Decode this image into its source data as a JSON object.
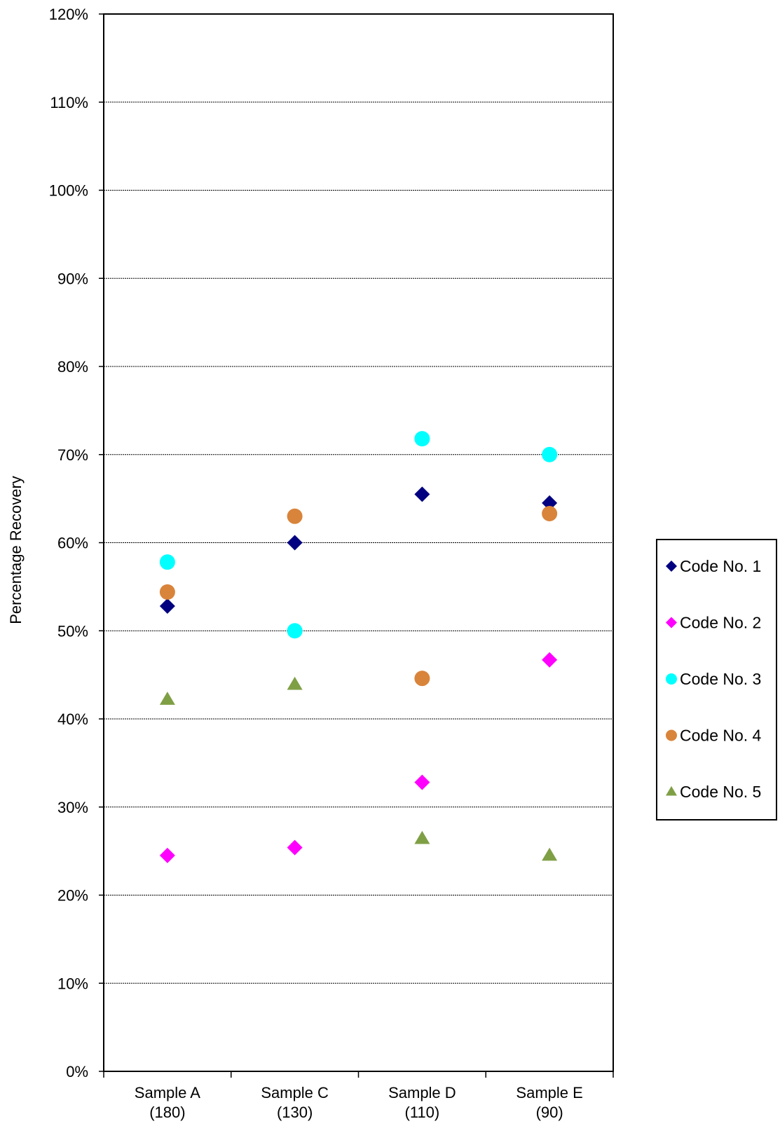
{
  "chart_data": {
    "type": "scatter",
    "title": "",
    "xlabel": "",
    "ylabel": "Percentage Recovery",
    "ylim": [
      0,
      120
    ],
    "y_ticks": [
      "0%",
      "10%",
      "20%",
      "30%",
      "40%",
      "50%",
      "60%",
      "70%",
      "80%",
      "90%",
      "100%",
      "110%",
      "120%"
    ],
    "categories": [
      {
        "name": "Sample A",
        "sub": "(180)"
      },
      {
        "name": "Sample C",
        "sub": "(130)"
      },
      {
        "name": "Sample D",
        "sub": "(110)"
      },
      {
        "name": "Sample E",
        "sub": "(90)"
      }
    ],
    "grid": "horizontal",
    "legend_position": "right",
    "series": [
      {
        "name": "Code No. 1",
        "marker": "diamond",
        "color": "#000080",
        "values": [
          52.8,
          60.0,
          65.5,
          64.5
        ]
      },
      {
        "name": "Code No. 2",
        "marker": "diamond",
        "color": "#ff00ff",
        "values": [
          24.5,
          25.4,
          32.8,
          46.7
        ]
      },
      {
        "name": "Code No. 3",
        "marker": "circle",
        "color": "#00ffff",
        "values": [
          57.8,
          50.0,
          71.8,
          70.0
        ]
      },
      {
        "name": "Code No. 4",
        "marker": "circle",
        "color": "#d9843b",
        "values": [
          54.4,
          63.0,
          44.6,
          63.3
        ]
      },
      {
        "name": "Code No. 5",
        "marker": "triangle",
        "color": "#7f9f45",
        "values": [
          42.2,
          43.9,
          26.4,
          24.5
        ]
      }
    ]
  }
}
